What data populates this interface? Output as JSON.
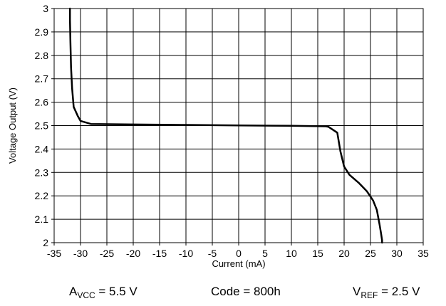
{
  "chart_data": {
    "type": "line",
    "xlabel": "Current (mA)",
    "ylabel": "Voltage Output (V)",
    "xlim": [
      -35,
      35
    ],
    "ylim": [
      2,
      3
    ],
    "xticks": [
      "-35",
      "-30",
      "-25",
      "-20",
      "-15",
      "-10",
      "-5",
      "0",
      "5",
      "10",
      "15",
      "20",
      "25",
      "30",
      "35"
    ],
    "yticks": [
      "2",
      "2.1",
      "2.2",
      "2.3",
      "2.4",
      "2.5",
      "2.6",
      "2.7",
      "2.8",
      "2.9",
      "3"
    ],
    "grid": true,
    "series": [
      {
        "color": "#000000",
        "x": [
          -32.0,
          -32.0,
          -31.9,
          -31.8,
          -31.6,
          -31.3,
          -30.5,
          -30.0,
          -28.0,
          -20.0,
          -10.0,
          0.0,
          10.0,
          16.5,
          17.0,
          18.7,
          19.3,
          20.0,
          21.0,
          22.8,
          24.3,
          25.5,
          26.2,
          26.7,
          27.0,
          27.2,
          27.2
        ],
        "y": [
          3.0,
          2.95,
          2.85,
          2.75,
          2.66,
          2.58,
          2.54,
          2.52,
          2.507,
          2.505,
          2.503,
          2.501,
          2.499,
          2.497,
          2.495,
          2.47,
          2.39,
          2.325,
          2.29,
          2.255,
          2.22,
          2.18,
          2.14,
          2.08,
          2.04,
          2.01,
          2.0
        ]
      }
    ]
  },
  "conditions": {
    "avcc": {
      "main": "A",
      "sub": "VCC",
      "value": " = 5.5 V"
    },
    "code": "Code = 800h",
    "vref": {
      "main": "V",
      "sub": "REF",
      "value": " = 2.5 V"
    }
  }
}
